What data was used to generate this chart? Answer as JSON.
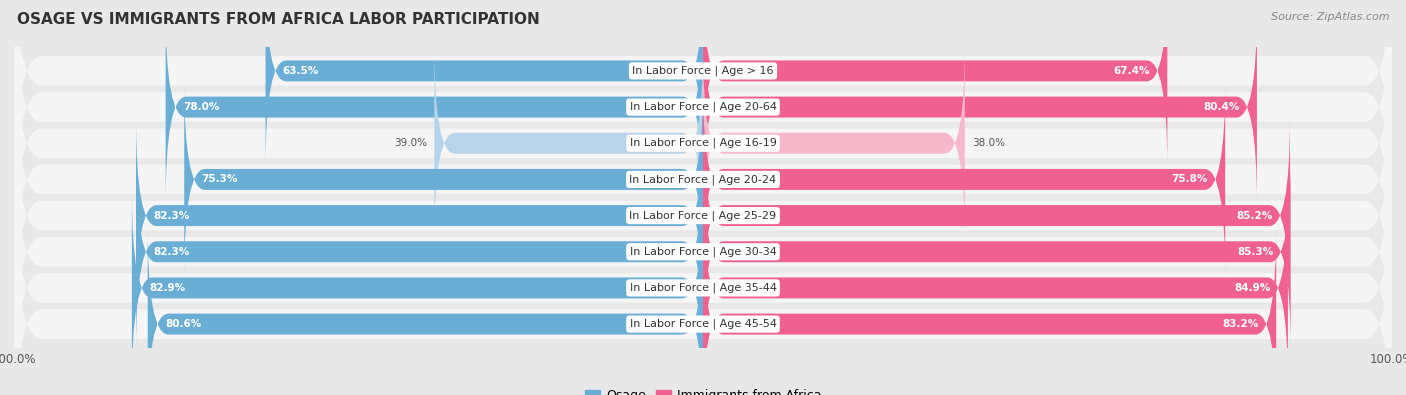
{
  "title": "OSAGE VS IMMIGRANTS FROM AFRICA LABOR PARTICIPATION",
  "source": "Source: ZipAtlas.com",
  "categories": [
    "In Labor Force | Age > 16",
    "In Labor Force | Age 20-64",
    "In Labor Force | Age 16-19",
    "In Labor Force | Age 20-24",
    "In Labor Force | Age 25-29",
    "In Labor Force | Age 30-34",
    "In Labor Force | Age 35-44",
    "In Labor Force | Age 45-54"
  ],
  "osage_values": [
    63.5,
    78.0,
    39.0,
    75.3,
    82.3,
    82.3,
    82.9,
    80.6
  ],
  "africa_values": [
    67.4,
    80.4,
    38.0,
    75.8,
    85.2,
    85.3,
    84.9,
    83.2
  ],
  "osage_color": "#6aaed6",
  "osage_color_light": "#b8d4ea",
  "africa_color": "#f06090",
  "africa_color_light": "#f8b8cc",
  "background_color": "#e8e8e8",
  "row_bg_color": "#f5f5f5",
  "max_value": 100.0,
  "legend_osage": "Osage",
  "legend_africa": "Immigrants from Africa",
  "title_fontsize": 11,
  "source_fontsize": 8,
  "label_fontsize": 8,
  "value_fontsize": 7.5
}
